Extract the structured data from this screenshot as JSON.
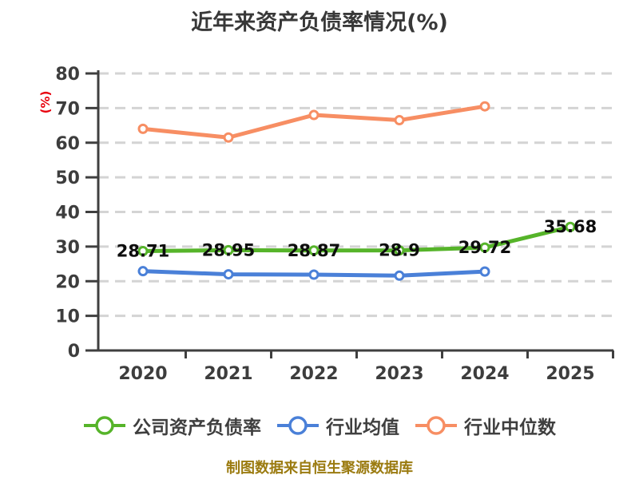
{
  "title": "近年来资产负债率情况(%)",
  "footer": {
    "text": "制图数据来自恒生聚源数据库"
  },
  "colors": {
    "title_text": "#383838",
    "axis": "#3f3f3f",
    "tick_label": "#3d3d3d",
    "gridline": "#d4d4d4",
    "data_label": "#0d0d0d",
    "y_unit_label": "#e8000d",
    "footer_text": "#9b7b10",
    "marker_fill": "#ffffff",
    "series_company": "#56b42a",
    "series_industry_avg": "#4a80d8",
    "series_industry_median": "#f78e63"
  },
  "chart_data": {
    "type": "line",
    "title": "近年来资产负债率情况(%)",
    "xlabel": "",
    "ylabel": "(%)",
    "categories": [
      "2020",
      "2021",
      "2022",
      "2023",
      "2024",
      "2025"
    ],
    "series": [
      {
        "name": "公司资产负债率",
        "color": "#56b42a",
        "values": [
          28.71,
          28.95,
          28.87,
          28.9,
          29.72,
          35.68
        ],
        "point_labels": [
          "28.71",
          "28.95",
          "28.87",
          "28.9",
          "29.72",
          "35.68"
        ],
        "show_labels": true
      },
      {
        "name": "行业均值",
        "color": "#4a80d8",
        "values": [
          22.9,
          22.0,
          21.9,
          21.6,
          22.8
        ],
        "show_labels": false
      },
      {
        "name": "行业中位数",
        "color": "#f78e63",
        "values": [
          64,
          61.5,
          68,
          66.5,
          70.5
        ],
        "show_labels": false
      }
    ],
    "ylim": [
      0,
      80
    ],
    "ytick_step": 10,
    "yticks": [
      0,
      10,
      20,
      30,
      40,
      50,
      60,
      70,
      80
    ],
    "grid": "horizontal-dashed",
    "legend_position": "bottom"
  }
}
